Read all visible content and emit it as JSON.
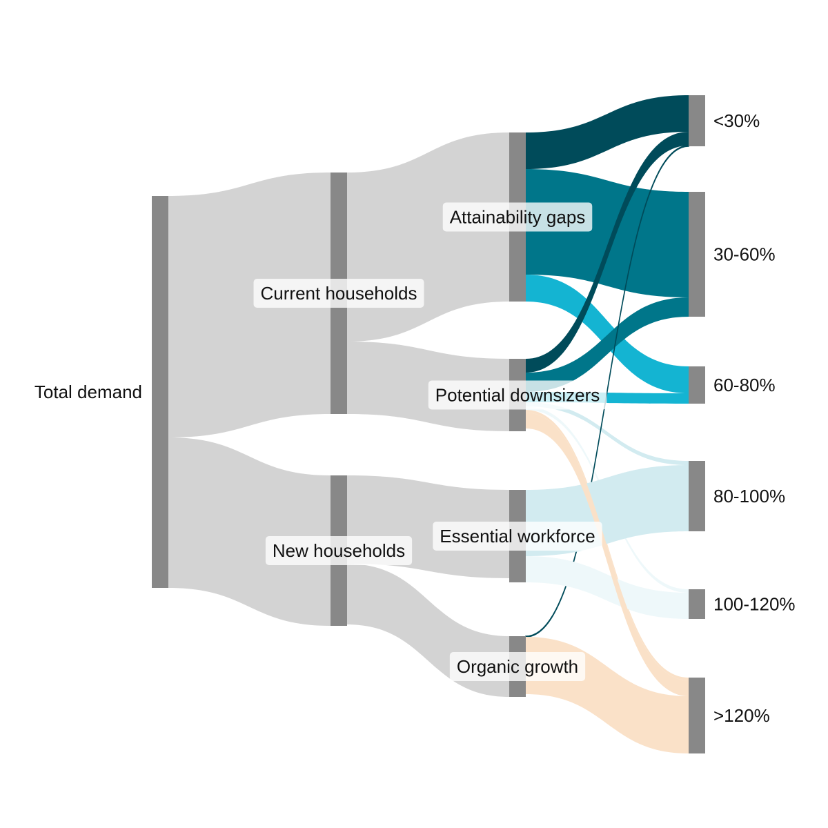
{
  "chart_data": {
    "type": "sankey",
    "nodes": [
      {
        "id": "total",
        "label": "Total demand"
      },
      {
        "id": "current",
        "label": "Current households"
      },
      {
        "id": "new",
        "label": "New households"
      },
      {
        "id": "attain",
        "label": "Attainability gaps"
      },
      {
        "id": "down",
        "label": "Potential downsizers"
      },
      {
        "id": "essential",
        "label": "Essential workforce"
      },
      {
        "id": "organic",
        "label": "Organic growth"
      },
      {
        "id": "lt30",
        "label": "<30%"
      },
      {
        "id": "b3060",
        "label": "30-60%"
      },
      {
        "id": "b6080",
        "label": "60-80%"
      },
      {
        "id": "b80100",
        "label": "80-100%"
      },
      {
        "id": "b100120",
        "label": "100-120%"
      },
      {
        "id": "gt120",
        "label": ">120%"
      }
    ],
    "links": [
      {
        "source": "total",
        "target": "current",
        "value": 350
      },
      {
        "source": "total",
        "target": "new",
        "value": 218
      },
      {
        "source": "current",
        "target": "attain",
        "value": 245
      },
      {
        "source": "current",
        "target": "down",
        "value": 105
      },
      {
        "source": "new",
        "target": "essential",
        "value": 128
      },
      {
        "source": "new",
        "target": "organic",
        "value": 88
      },
      {
        "source": "attain",
        "target": "lt30",
        "value": 53
      },
      {
        "source": "attain",
        "target": "b3060",
        "value": 153
      },
      {
        "source": "attain",
        "target": "b6080",
        "value": 39
      },
      {
        "source": "down",
        "target": "lt30",
        "value": 20
      },
      {
        "source": "down",
        "target": "b3060",
        "value": 28
      },
      {
        "source": "down",
        "target": "b6080",
        "value": 15
      },
      {
        "source": "down",
        "target": "b80100",
        "value": 6
      },
      {
        "source": "down",
        "target": "b100120",
        "value": 5
      },
      {
        "source": "down",
        "target": "gt120",
        "value": 4
      },
      {
        "source": "organic",
        "target": "lt30",
        "value": 1
      },
      {
        "source": "essential",
        "target": "b80100",
        "value": 96
      },
      {
        "source": "essential",
        "target": "b100120",
        "value": 38
      },
      {
        "source": "down",
        "target": "gt120",
        "value": 23
      },
      {
        "source": "organic",
        "target": "gt120",
        "value": 83
      }
    ],
    "link_colors": {
      "lt30": "#004b5a",
      "b3060": "#00768a",
      "b6080": "#14b4d2",
      "b80100": "#d2ebf0",
      "b100120": "#eef8fa",
      "gt120": "#fae1c8",
      "upstream": "#d3d3d3"
    },
    "node_color": "#888888"
  }
}
